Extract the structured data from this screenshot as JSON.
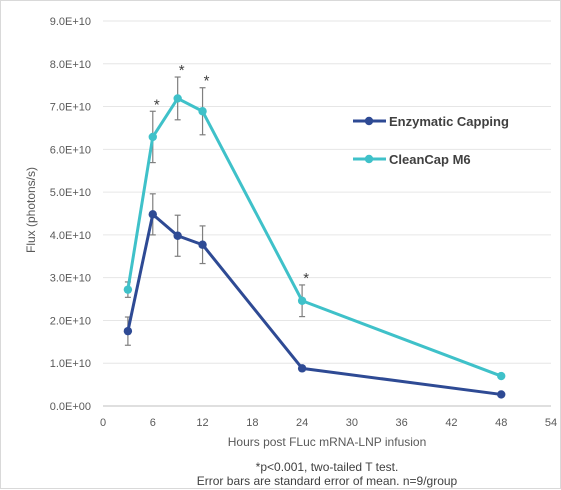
{
  "chart_data": {
    "type": "line",
    "xlabel": "Hours post FLuc mRNA-LNP infusion",
    "ylabel": "Flux (photons/s)",
    "xlim": [
      0,
      54
    ],
    "ylim": [
      0,
      90000000000
    ],
    "x_ticks": [
      "0",
      "6",
      "12",
      "18",
      "24",
      "30",
      "36",
      "42",
      "48",
      "54"
    ],
    "y_ticks": [
      "0.0E+00",
      "1.0E+10",
      "2.0E+10",
      "3.0E+10",
      "4.0E+10",
      "5.0E+10",
      "6.0E+10",
      "7.0E+10",
      "8.0E+10",
      "9.0E+10"
    ],
    "grid": "horizontal",
    "legend_position": "right",
    "series": [
      {
        "name": "Enzymatic Capping",
        "color": "#2e4a94",
        "x": [
          3,
          6,
          9,
          12,
          24,
          48
        ],
        "values": [
          17500000000,
          44800000000,
          39800000000,
          37700000000,
          8800000000,
          2700000000
        ],
        "errors": [
          3300000000,
          4800000000,
          4800000000,
          4400000000,
          600000000,
          300000000
        ]
      },
      {
        "name": "CleanCap M6",
        "color": "#3fc1c9",
        "x": [
          3,
          6,
          9,
          12,
          24,
          48
        ],
        "values": [
          27200000000,
          62900000000,
          71900000000,
          68900000000,
          24600000000,
          7000000000
        ],
        "errors": [
          1800000000,
          6000000000,
          5000000000,
          5500000000,
          3700000000,
          300000000
        ]
      }
    ],
    "significance": {
      "marker": "*",
      "x": [
        6,
        9,
        12,
        24
      ]
    },
    "footnotes": [
      "*p<0.001, two-tailed T test.",
      "Error bars are standard error of mean. n=9/group"
    ]
  }
}
